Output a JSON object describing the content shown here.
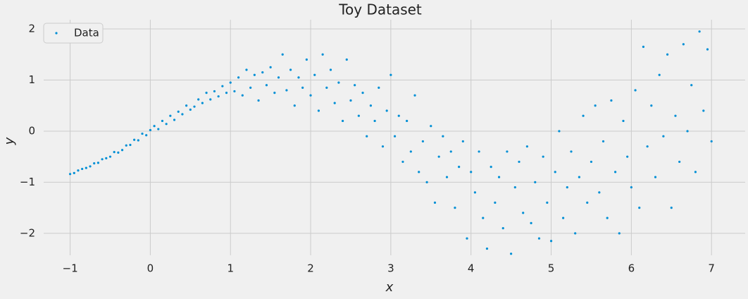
{
  "chart_data": {
    "type": "scatter",
    "title": "Toy Dataset",
    "x_label": "x",
    "y_label": "y",
    "series": [
      {
        "name": "Data",
        "color": "#008fd5",
        "x": [
          -1.0,
          -0.95,
          -0.9,
          -0.85,
          -0.8,
          -0.75,
          -0.7,
          -0.65,
          -0.6,
          -0.55,
          -0.5,
          -0.45,
          -0.4,
          -0.35,
          -0.3,
          -0.25,
          -0.2,
          -0.15,
          -0.1,
          -0.05,
          0.0,
          0.05,
          0.1,
          0.15,
          0.2,
          0.25,
          0.3,
          0.35,
          0.4,
          0.45,
          0.5,
          0.55,
          0.6,
          0.65,
          0.7,
          0.75,
          0.8,
          0.85,
          0.9,
          0.95,
          1.0,
          1.05,
          1.1,
          1.15,
          1.2,
          1.25,
          1.3,
          1.35,
          1.4,
          1.45,
          1.5,
          1.55,
          1.6,
          1.65,
          1.7,
          1.75,
          1.8,
          1.85,
          1.9,
          1.95,
          2.0,
          2.05,
          2.1,
          2.15,
          2.2,
          2.25,
          2.3,
          2.35,
          2.4,
          2.45,
          2.5,
          2.55,
          2.6,
          2.65,
          2.7,
          2.75,
          2.8,
          2.85,
          2.9,
          2.95,
          3.0,
          3.05,
          3.1,
          3.15,
          3.2,
          3.25,
          3.3,
          3.35,
          3.4,
          3.45,
          3.5,
          3.55,
          3.6,
          3.65,
          3.7,
          3.75,
          3.8,
          3.85,
          3.9,
          3.95,
          4.0,
          4.05,
          4.1,
          4.15,
          4.2,
          4.25,
          4.3,
          4.35,
          4.4,
          4.45,
          4.5,
          4.55,
          4.6,
          4.65,
          4.7,
          4.75,
          4.8,
          4.85,
          4.9,
          4.95,
          5.0,
          5.05,
          5.1,
          5.15,
          5.2,
          5.25,
          5.3,
          5.35,
          5.4,
          5.45,
          5.5,
          5.55,
          5.6,
          5.65,
          5.7,
          5.75,
          5.8,
          5.85,
          5.9,
          5.95,
          6.0,
          6.05,
          6.1,
          6.15,
          6.2,
          6.25,
          6.3,
          6.35,
          6.4,
          6.45,
          6.5,
          6.55,
          6.6,
          6.65,
          6.7,
          6.75,
          6.8,
          6.85,
          6.9,
          6.95,
          7.0
        ],
        "values": [
          -0.84,
          -0.82,
          -0.77,
          -0.74,
          -0.72,
          -0.69,
          -0.63,
          -0.62,
          -0.55,
          -0.53,
          -0.5,
          -0.41,
          -0.42,
          -0.37,
          -0.28,
          -0.27,
          -0.17,
          -0.18,
          -0.05,
          -0.08,
          0.02,
          0.1,
          0.04,
          0.2,
          0.14,
          0.3,
          0.22,
          0.38,
          0.33,
          0.5,
          0.42,
          0.48,
          0.62,
          0.55,
          0.75,
          0.62,
          0.78,
          0.68,
          0.88,
          0.75,
          0.95,
          0.78,
          1.05,
          0.7,
          1.2,
          0.85,
          1.1,
          0.6,
          1.15,
          0.9,
          1.25,
          0.75,
          1.05,
          1.5,
          0.8,
          1.2,
          0.5,
          1.05,
          0.85,
          1.4,
          0.7,
          1.1,
          0.4,
          1.5,
          0.85,
          1.2,
          0.55,
          0.95,
          0.2,
          1.4,
          0.6,
          0.9,
          0.3,
          0.75,
          -0.1,
          0.5,
          0.2,
          0.85,
          -0.3,
          0.4,
          1.1,
          -0.1,
          0.3,
          -0.6,
          0.2,
          -0.4,
          0.7,
          -0.8,
          -0.2,
          -1.0,
          0.1,
          -1.4,
          -0.5,
          -0.1,
          -0.9,
          -0.4,
          -1.5,
          -0.7,
          -0.2,
          -2.1,
          -0.8,
          -1.2,
          -0.4,
          -1.7,
          -2.3,
          -0.7,
          -1.4,
          -0.9,
          -1.9,
          -0.4,
          -2.4,
          -1.1,
          -0.6,
          -1.6,
          -0.3,
          -1.8,
          -1.0,
          -2.1,
          -0.5,
          -1.4,
          -2.15,
          -0.8,
          0.0,
          -1.7,
          -1.1,
          -0.4,
          -2.0,
          -0.9,
          0.3,
          -1.4,
          -0.6,
          0.5,
          -1.2,
          -0.2,
          -1.7,
          0.6,
          -0.8,
          -2.0,
          0.2,
          -0.5,
          -1.1,
          0.8,
          -1.5,
          1.65,
          -0.3,
          0.5,
          -0.9,
          1.1,
          -0.1,
          1.5,
          -1.5,
          0.3,
          -0.6,
          1.7,
          0.0,
          0.9,
          -0.8,
          1.95,
          0.4,
          1.6,
          -0.2
        ]
      }
    ],
    "xlim": [
      -1.33,
      7.42
    ],
    "ylim": [
      -2.43,
      2.18
    ],
    "xticks": [
      {
        "value": -1,
        "label": "−1"
      },
      0,
      1,
      2,
      3,
      4,
      5,
      6,
      7
    ],
    "yticks": [
      {
        "value": -2,
        "label": "−2"
      },
      {
        "value": -1,
        "label": "−1"
      },
      0,
      1,
      2
    ],
    "grid": true,
    "legend": "upper left"
  }
}
